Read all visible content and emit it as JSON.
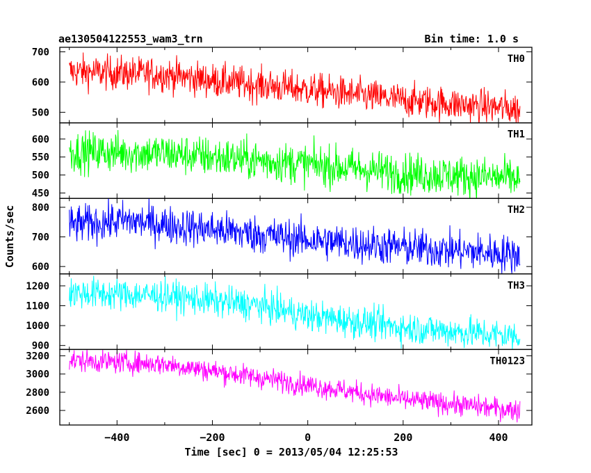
{
  "header": {
    "title": "ae130504122553_wam3_trn",
    "bin_time": "Bin time: 1.0 s"
  },
  "chart_data": {
    "type": "line",
    "title": "ae130504122553_wam3_trn",
    "xlabel": "Time [sec] 0 = 2013/05/04 12:25:53",
    "ylabel": "Counts/sec",
    "xlim": [
      -520,
      470
    ],
    "x_range": [
      -500,
      445
    ],
    "x_ticks": [
      -400,
      -200,
      0,
      200,
      400
    ],
    "grid": false,
    "panels": [
      {
        "name": "TH0",
        "color": "#ff0000",
        "ylim": [
          465,
          715
        ],
        "ticks": [
          500,
          600,
          700
        ],
        "trend": [
          [
            -500,
            635
          ],
          [
            -300,
            625
          ],
          [
            -200,
            605
          ],
          [
            0,
            575
          ],
          [
            200,
            540
          ],
          [
            445,
            510
          ]
        ],
        "noise": 28
      },
      {
        "name": "TH1",
        "color": "#00ff00",
        "ylim": [
          435,
          645
        ],
        "ticks": [
          450,
          500,
          550,
          600
        ],
        "trend": [
          [
            -500,
            565
          ],
          [
            -300,
            560
          ],
          [
            0,
            530
          ],
          [
            200,
            505
          ],
          [
            445,
            490
          ]
        ],
        "noise": 28
      },
      {
        "name": "TH2",
        "color": "#0000ff",
        "ylim": [
          575,
          830
        ],
        "ticks": [
          600,
          700,
          800
        ],
        "trend": [
          [
            -500,
            740
          ],
          [
            -380,
            755
          ],
          [
            -200,
            725
          ],
          [
            0,
            690
          ],
          [
            200,
            665
          ],
          [
            445,
            640
          ]
        ],
        "noise": 32
      },
      {
        "name": "TH3",
        "color": "#00ffff",
        "ylim": [
          880,
          1260
        ],
        "ticks": [
          900,
          1000,
          1100,
          1200
        ],
        "trend": [
          [
            -500,
            1165
          ],
          [
            -300,
            1150
          ],
          [
            -100,
            1100
          ],
          [
            0,
            1050
          ],
          [
            200,
            990
          ],
          [
            445,
            945
          ]
        ],
        "noise": 40
      },
      {
        "name": "TH0123",
        "color": "#ff00ff",
        "ylim": [
          2440,
          3270
        ],
        "ticks": [
          2600,
          2800,
          3000,
          3200
        ],
        "trend": [
          [
            -500,
            3150
          ],
          [
            -300,
            3110
          ],
          [
            -100,
            2960
          ],
          [
            0,
            2880
          ],
          [
            200,
            2720
          ],
          [
            445,
            2600
          ]
        ],
        "noise": 60
      }
    ]
  }
}
